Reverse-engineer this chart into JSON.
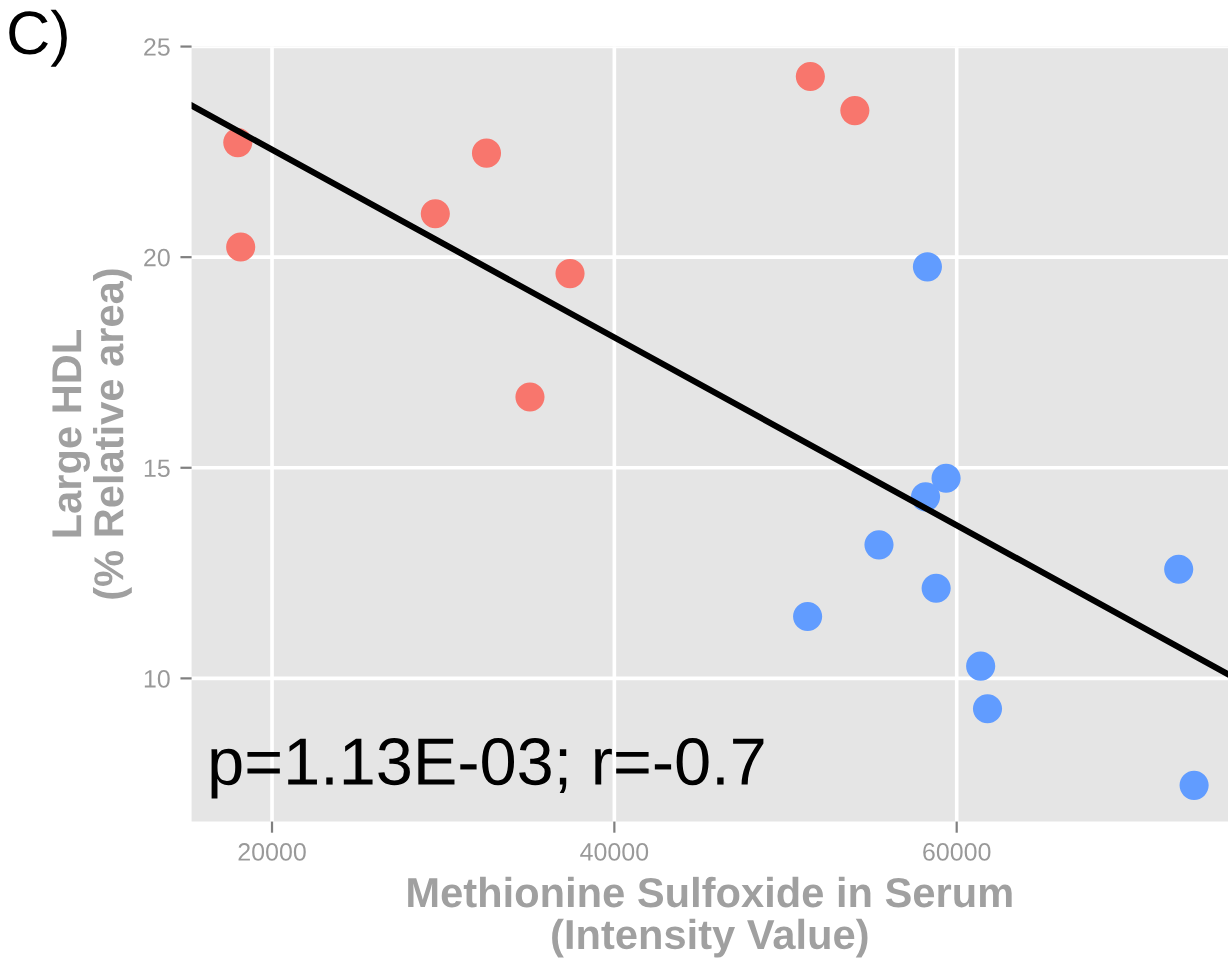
{
  "chart_data": {
    "type": "scatter",
    "xlabel": "Methionine Sulfoxide in Serum\n(Intensity Value)",
    "ylabel": "Large HDL\n(% Relative area)",
    "annotations": [
      "C)",
      "p=1.13E-03; r=-0.7"
    ],
    "series": [
      {
        "color": "#f8766d",
        "x": [
          18000,
          18170,
          29540,
          32530,
          37410,
          35070,
          51450,
          54050
        ],
        "values": [
          22.72,
          20.24,
          21.03,
          22.47,
          19.61,
          16.68,
          24.29,
          23.48
        ]
      },
      {
        "color": "#619cff",
        "x": [
          58290,
          59380,
          58180,
          55460,
          58800,
          51290,
          61400,
          61800,
          72970,
          73870
        ],
        "values": [
          19.77,
          14.75,
          14.31,
          13.17,
          12.14,
          11.47,
          10.29,
          9.28,
          12.59,
          7.46
        ]
      },
      {
        "type": "line",
        "marker": "none",
        "color": "#000000",
        "x": [
          15300,
          75850
        ],
        "values": [
          23.6,
          10.1
        ]
      }
    ],
    "xlim": [
      15300,
      75850
    ],
    "ylim": [
      6.6,
      25.0
    ],
    "xticks": [
      20000,
      40000,
      60000
    ],
    "yticks": [
      10,
      15,
      20,
      25
    ],
    "grid": true,
    "marker": "circle"
  }
}
